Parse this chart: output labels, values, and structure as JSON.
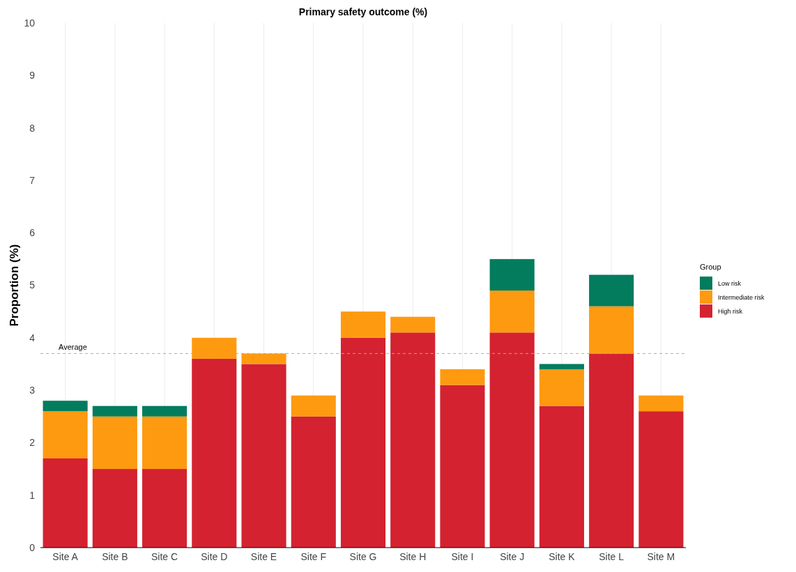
{
  "chart_data": {
    "type": "bar",
    "title": "Primary safety outcome (%)",
    "ylabel": "Proportion (%)",
    "legend_title": "Group",
    "stacked": true,
    "grid": "x",
    "legend": "right",
    "categories": [
      "Site A",
      "Site B",
      "Site C",
      "Site D",
      "Site E",
      "Site F",
      "Site G",
      "Site H",
      "Site I",
      "Site J",
      "Site K",
      "Site L",
      "Site M"
    ],
    "series": [
      {
        "name": "High risk",
        "color": "#d42230",
        "values": [
          1.7,
          1.5,
          1.5,
          3.6,
          3.5,
          2.5,
          4.0,
          4.1,
          3.1,
          4.1,
          2.7,
          3.7,
          2.6
        ]
      },
      {
        "name": "Intermediate risk",
        "color": "#fe9a10",
        "values": [
          0.9,
          1.0,
          1.0,
          0.4,
          0.2,
          0.4,
          0.5,
          0.3,
          0.3,
          0.8,
          0.7,
          0.9,
          0.3
        ]
      },
      {
        "name": "Low risk",
        "color": "#037c5e",
        "values": [
          0.2,
          0.2,
          0.2,
          null,
          null,
          null,
          null,
          null,
          null,
          0.6,
          0.1,
          0.6,
          null
        ]
      }
    ],
    "ylim": [
      0,
      10
    ],
    "yticks": [
      0,
      1,
      2,
      3,
      4,
      5,
      6,
      7,
      8,
      9,
      10
    ],
    "ref_lines": [
      {
        "axis": "y",
        "value": 3.7,
        "label": "Average",
        "color": "#aaaaaa",
        "line_style": "dashed"
      }
    ]
  }
}
